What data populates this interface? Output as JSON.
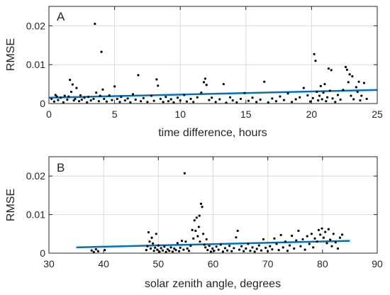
{
  "chart_data": [
    {
      "panel": "A",
      "type": "scatter",
      "xlabel": "time difference, hours",
      "ylabel": "RMSE",
      "xlim": [
        0,
        25
      ],
      "ylim": [
        0,
        0.025
      ],
      "x_ticks": [
        0,
        5,
        10,
        15,
        20,
        25
      ],
      "x_tick_labels": [
        "0",
        "5",
        "10",
        "15",
        "20",
        "25"
      ],
      "y_ticks": [
        0,
        0.01,
        0.02
      ],
      "y_tick_labels": [
        "0",
        "0.01",
        "0.02"
      ],
      "grid": true,
      "point_color": "#000000",
      "fit_color": "#0072BD",
      "fit_line": {
        "x": [
          0,
          25
        ],
        "y": [
          0.0015,
          0.0035
        ]
      },
      "points": [
        [
          0.2,
          0.0012
        ],
        [
          0.4,
          0.0005
        ],
        [
          0.5,
          0.0022
        ],
        [
          0.6,
          0.0018
        ],
        [
          0.7,
          0.0009
        ],
        [
          0.9,
          0.0015
        ],
        [
          1.1,
          0.0003
        ],
        [
          1.2,
          0.002
        ],
        [
          1.4,
          0.001
        ],
        [
          1.5,
          0.0018
        ],
        [
          1.6,
          0.0061
        ],
        [
          1.7,
          0.003
        ],
        [
          1.8,
          0.0049
        ],
        [
          1.9,
          0.0008
        ],
        [
          2.0,
          0.0012
        ],
        [
          2.1,
          0.004
        ],
        [
          2.3,
          0.0006
        ],
        [
          2.4,
          0.0021
        ],
        [
          2.5,
          0.001
        ],
        [
          2.7,
          0.0015
        ],
        [
          2.9,
          0.0003
        ],
        [
          3.0,
          0.0017
        ],
        [
          3.2,
          0.0008
        ],
        [
          3.4,
          0.0012
        ],
        [
          3.5,
          0.0205
        ],
        [
          3.6,
          0.0028
        ],
        [
          3.8,
          0.0006
        ],
        [
          3.9,
          0.002
        ],
        [
          4.0,
          0.0133
        ],
        [
          4.1,
          0.0036
        ],
        [
          4.2,
          0.0012
        ],
        [
          4.4,
          0.0005
        ],
        [
          4.6,
          0.0021
        ],
        [
          4.8,
          0.0009
        ],
        [
          5.0,
          0.0044
        ],
        [
          5.2,
          0.0012
        ],
        [
          5.4,
          0.0004
        ],
        [
          5.5,
          0.0017
        ],
        [
          5.8,
          0.0008
        ],
        [
          6.0,
          0.0013
        ],
        [
          6.2,
          0.0003
        ],
        [
          6.4,
          0.0024
        ],
        [
          6.6,
          0.001
        ],
        [
          6.8,
          0.0073
        ],
        [
          7.0,
          0.0006
        ],
        [
          7.2,
          0.0014
        ],
        [
          7.5,
          0.0004
        ],
        [
          7.8,
          0.002
        ],
        [
          8.0,
          0.0007
        ],
        [
          8.2,
          0.0062
        ],
        [
          8.3,
          0.0046
        ],
        [
          8.5,
          0.0012
        ],
        [
          8.7,
          0.0004
        ],
        [
          8.9,
          0.0017
        ],
        [
          9.1,
          0.0006
        ],
        [
          9.3,
          0.0011
        ],
        [
          9.5,
          0.0003
        ],
        [
          9.8,
          0.0015
        ],
        [
          10.0,
          0.0008
        ],
        [
          10.3,
          0.0022
        ],
        [
          10.5,
          0.0005
        ],
        [
          10.8,
          0.0012
        ],
        [
          11.0,
          0.0004
        ],
        [
          11.3,
          0.0016
        ],
        [
          11.6,
          0.0028
        ],
        [
          11.8,
          0.0055
        ],
        [
          11.9,
          0.0064
        ],
        [
          12.0,
          0.0048
        ],
        [
          12.2,
          0.0009
        ],
        [
          12.4,
          0.0015
        ],
        [
          12.7,
          0.0004
        ],
        [
          13.0,
          0.0011
        ],
        [
          13.3,
          0.005
        ],
        [
          13.5,
          0.0002
        ],
        [
          13.8,
          0.0016
        ],
        [
          14.0,
          0.0008
        ],
        [
          14.3,
          0.0003
        ],
        [
          14.6,
          0.0012
        ],
        [
          14.9,
          0.0027
        ],
        [
          15.2,
          0.0007
        ],
        [
          15.5,
          0.0015
        ],
        [
          15.8,
          0.0004
        ],
        [
          16.1,
          0.001
        ],
        [
          16.4,
          0.0056
        ],
        [
          16.7,
          0.0003
        ],
        [
          17.0,
          0.0013
        ],
        [
          17.3,
          0.0006
        ],
        [
          17.6,
          0.0018
        ],
        [
          17.9,
          0.0009
        ],
        [
          18.2,
          0.0026
        ],
        [
          18.5,
          0.0004
        ],
        [
          18.8,
          0.0011
        ],
        [
          19.1,
          0.0016
        ],
        [
          19.4,
          0.004
        ],
        [
          19.7,
          0.0021
        ],
        [
          19.9,
          0.0005
        ],
        [
          20.1,
          0.0014
        ],
        [
          20.2,
          0.0127
        ],
        [
          20.3,
          0.011
        ],
        [
          20.4,
          0.003
        ],
        [
          20.5,
          0.0008
        ],
        [
          20.6,
          0.002
        ],
        [
          20.7,
          0.0045
        ],
        [
          20.8,
          0.0011
        ],
        [
          20.9,
          0.0028
        ],
        [
          21.0,
          0.005
        ],
        [
          21.1,
          0.0006
        ],
        [
          21.2,
          0.0016
        ],
        [
          21.3,
          0.009
        ],
        [
          21.4,
          0.0033
        ],
        [
          21.5,
          0.0086
        ],
        [
          21.6,
          0.0013
        ],
        [
          21.8,
          0.0004
        ],
        [
          22.0,
          0.0022
        ],
        [
          22.2,
          0.001
        ],
        [
          22.4,
          0.0035
        ],
        [
          22.6,
          0.0094
        ],
        [
          22.7,
          0.0087
        ],
        [
          22.8,
          0.0055
        ],
        [
          22.9,
          0.0075
        ],
        [
          23.0,
          0.002
        ],
        [
          23.1,
          0.007
        ],
        [
          23.2,
          0.0011
        ],
        [
          23.4,
          0.0042
        ],
        [
          23.5,
          0.003
        ],
        [
          23.6,
          0.0056
        ],
        [
          23.7,
          0.0008
        ],
        [
          23.8,
          0.002
        ],
        [
          24.0,
          0.0053
        ],
        [
          24.2,
          0.0012
        ]
      ]
    },
    {
      "panel": "B",
      "type": "scatter",
      "xlabel": "solar zenith angle, degrees",
      "ylabel": "RMSE",
      "xlim": [
        30,
        90
      ],
      "ylim": [
        0,
        0.025
      ],
      "x_ticks": [
        30,
        40,
        50,
        60,
        70,
        80,
        90
      ],
      "x_tick_labels": [
        "30",
        "40",
        "50",
        "60",
        "70",
        "80",
        "90"
      ],
      "y_ticks": [
        0,
        0.01,
        0.02
      ],
      "y_tick_labels": [
        "0",
        "0.01",
        "0.02"
      ],
      "grid": true,
      "point_color": "#000000",
      "fit_color": "#0072BD",
      "fit_line": {
        "x": [
          35,
          85
        ],
        "y": [
          0.0015,
          0.0032
        ]
      },
      "points": [
        [
          37.8,
          0.0007
        ],
        [
          38.2,
          0.0003
        ],
        [
          38.6,
          0.001
        ],
        [
          39.0,
          0.0005
        ],
        [
          40.2,
          0.0008
        ],
        [
          47.8,
          0.0008
        ],
        [
          48.0,
          0.0018
        ],
        [
          48.2,
          0.0054
        ],
        [
          48.4,
          0.003
        ],
        [
          48.6,
          0.0012
        ],
        [
          48.8,
          0.004
        ],
        [
          49.0,
          0.0025
        ],
        [
          49.2,
          0.0006
        ],
        [
          49.4,
          0.0014
        ],
        [
          49.6,
          0.005
        ],
        [
          49.8,
          0.0009
        ],
        [
          50.0,
          0.002
        ],
        [
          50.2,
          0.0004
        ],
        [
          50.5,
          0.0013
        ],
        [
          50.8,
          0.0007
        ],
        [
          51.1,
          0.0017
        ],
        [
          51.4,
          0.0003
        ],
        [
          51.7,
          0.001
        ],
        [
          52.0,
          0.0006
        ],
        [
          52.3,
          0.0015
        ],
        [
          52.6,
          0.0004
        ],
        [
          52.9,
          0.0012
        ],
        [
          53.2,
          0.0008
        ],
        [
          53.5,
          0.0026
        ],
        [
          53.8,
          0.0005
        ],
        [
          54.0,
          0.0014
        ],
        [
          54.3,
          0.0032
        ],
        [
          54.6,
          0.0009
        ],
        [
          54.8,
          0.0207
        ],
        [
          55.0,
          0.003
        ],
        [
          55.3,
          0.0012
        ],
        [
          55.6,
          0.0006
        ],
        [
          55.9,
          0.0019
        ],
        [
          56.2,
          0.006
        ],
        [
          56.4,
          0.0038
        ],
        [
          56.6,
          0.0085
        ],
        [
          56.8,
          0.0058
        ],
        [
          57.0,
          0.0092
        ],
        [
          57.2,
          0.0044
        ],
        [
          57.4,
          0.0068
        ],
        [
          57.5,
          0.0097
        ],
        [
          57.6,
          0.003
        ],
        [
          57.8,
          0.0128
        ],
        [
          58.0,
          0.012
        ],
        [
          58.2,
          0.005
        ],
        [
          58.4,
          0.0022
        ],
        [
          58.6,
          0.0015
        ],
        [
          58.8,
          0.0036
        ],
        [
          59.0,
          0.0008
        ],
        [
          59.3,
          0.0019
        ],
        [
          59.6,
          0.0004
        ],
        [
          59.9,
          0.0012
        ],
        [
          60.2,
          0.0006
        ],
        [
          60.6,
          0.0017
        ],
        [
          61.0,
          0.0009
        ],
        [
          61.4,
          0.0022
        ],
        [
          61.8,
          0.0004
        ],
        [
          62.2,
          0.0013
        ],
        [
          62.6,
          0.0007
        ],
        [
          63.0,
          0.0019
        ],
        [
          63.4,
          0.0005
        ],
        [
          63.8,
          0.0013
        ],
        [
          64.2,
          0.0041
        ],
        [
          64.5,
          0.0058
        ],
        [
          64.8,
          0.0009
        ],
        [
          65.2,
          0.0018
        ],
        [
          65.6,
          0.0005
        ],
        [
          66.0,
          0.0012
        ],
        [
          66.4,
          0.0024
        ],
        [
          66.8,
          0.0006
        ],
        [
          67.2,
          0.0015
        ],
        [
          67.6,
          0.0004
        ],
        [
          68.0,
          0.0011
        ],
        [
          68.4,
          0.002
        ],
        [
          68.8,
          0.0007
        ],
        [
          69.2,
          0.0036
        ],
        [
          69.6,
          0.0014
        ],
        [
          70.0,
          0.0005
        ],
        [
          70.4,
          0.0018
        ],
        [
          70.8,
          0.001
        ],
        [
          71.2,
          0.0038
        ],
        [
          71.6,
          0.0024
        ],
        [
          72.0,
          0.0008
        ],
        [
          72.4,
          0.0047
        ],
        [
          72.8,
          0.0015
        ],
        [
          73.2,
          0.003
        ],
        [
          73.6,
          0.0006
        ],
        [
          74.0,
          0.002
        ],
        [
          74.4,
          0.0045
        ],
        [
          74.8,
          0.0012
        ],
        [
          75.2,
          0.0033
        ],
        [
          75.6,
          0.0058
        ],
        [
          76.0,
          0.0018
        ],
        [
          76.4,
          0.0036
        ],
        [
          76.8,
          0.0009
        ],
        [
          77.2,
          0.0044
        ],
        [
          77.6,
          0.0024
        ],
        [
          78.0,
          0.005
        ],
        [
          78.3,
          0.0015
        ],
        [
          78.6,
          0.0038
        ],
        [
          79.0,
          0.003
        ],
        [
          79.3,
          0.006
        ],
        [
          79.6,
          0.0048
        ],
        [
          79.9,
          0.0064
        ],
        [
          80.2,
          0.004
        ],
        [
          80.5,
          0.0055
        ],
        [
          80.8,
          0.0026
        ],
        [
          81.1,
          0.0062
        ],
        [
          81.4,
          0.0035
        ],
        [
          81.7,
          0.0018
        ],
        [
          82.0,
          0.005
        ],
        [
          82.4,
          0.0028
        ],
        [
          82.8,
          0.0012
        ],
        [
          83.2,
          0.004
        ],
        [
          83.6,
          0.0048
        ]
      ]
    }
  ],
  "panels": [
    {
      "tag": "A"
    },
    {
      "tag": "B"
    }
  ]
}
